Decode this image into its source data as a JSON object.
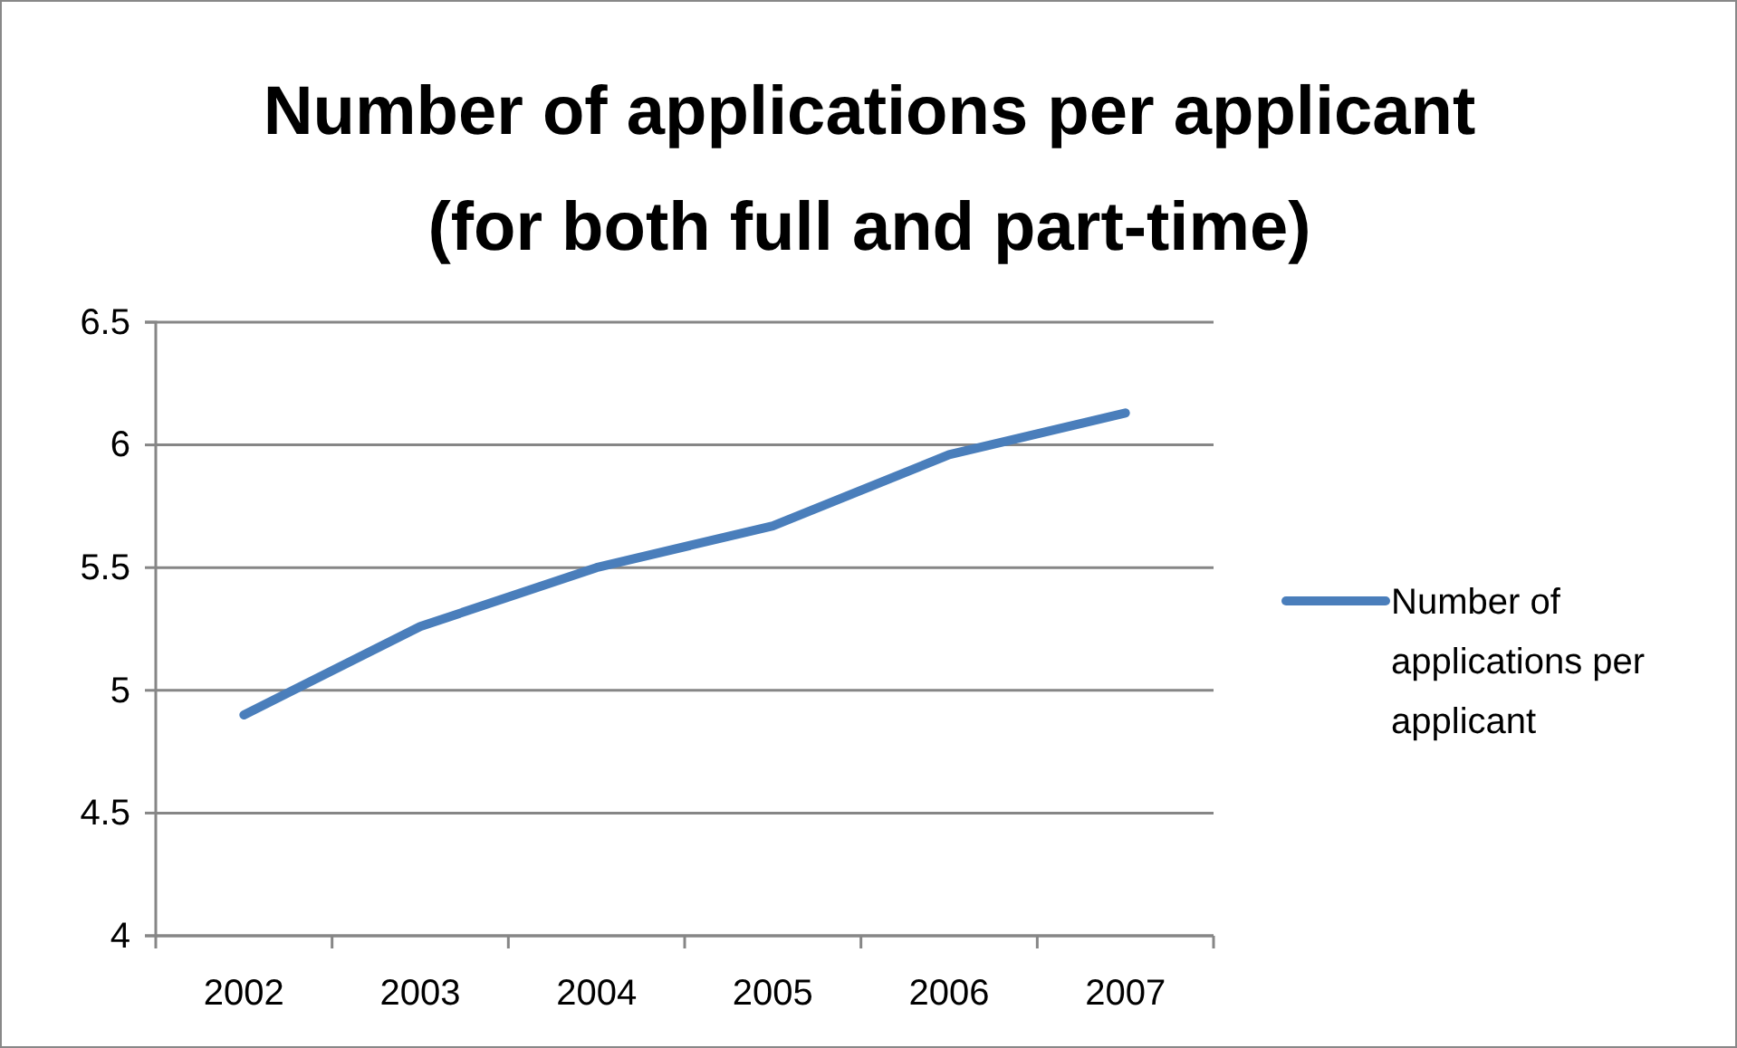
{
  "chart_data": {
    "type": "line",
    "title": "Number of applications per applicant\n(for both full and part-time)",
    "categories": [
      "2002",
      "2003",
      "2004",
      "2005",
      "2006",
      "2007"
    ],
    "series": [
      {
        "name": "Number of applications per applicant",
        "color": "#4a7ebb",
        "values": [
          4.9,
          5.26,
          5.5,
          5.67,
          5.96,
          6.13
        ]
      }
    ],
    "ylim": [
      4,
      6.5
    ],
    "yticks": [
      4,
      {
        "value": 4.5,
        "label": "4.5"
      },
      5,
      {
        "value": 5.5,
        "label": "5.5"
      },
      6,
      {
        "value": 6.5,
        "label": "6.5"
      }
    ],
    "grid": "y",
    "legend": "right",
    "marker": "none",
    "line_style": "solid"
  }
}
